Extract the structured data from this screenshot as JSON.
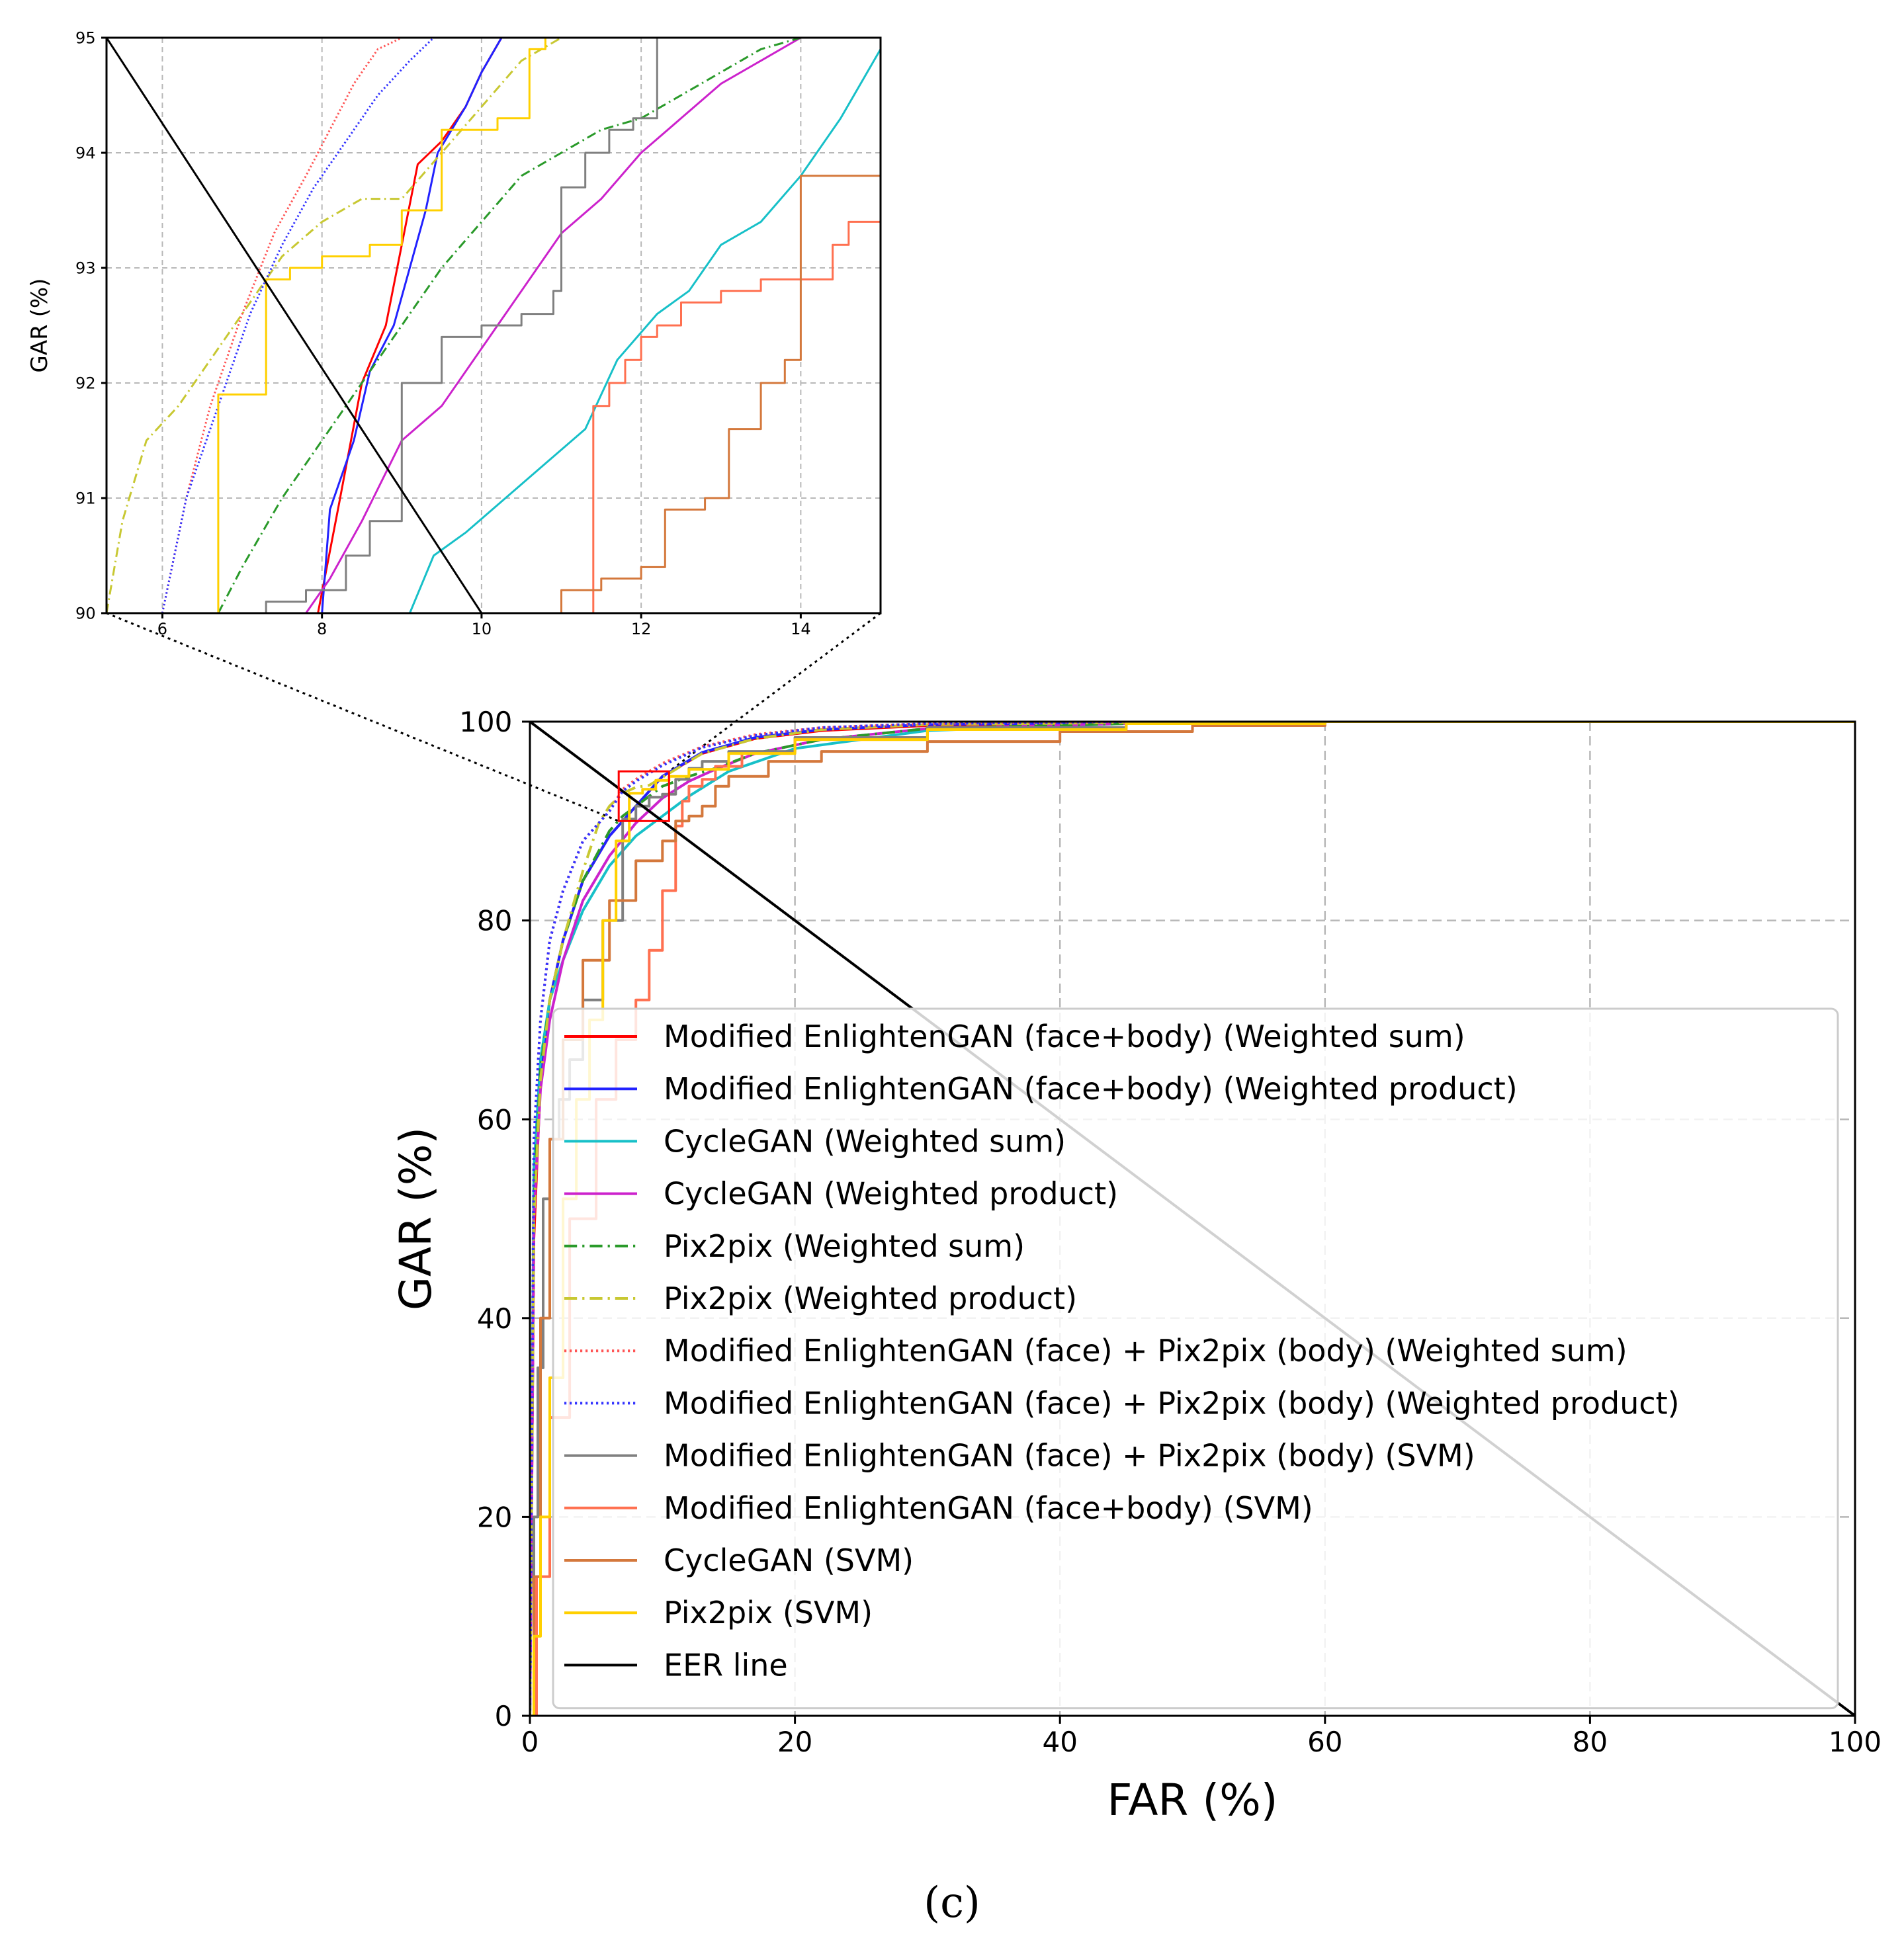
{
  "chart_data": [
    {
      "id": "main",
      "type": "line",
      "title": "",
      "xlabel": "FAR (%)",
      "ylabel": "GAR (%)",
      "xlim": [
        0,
        100
      ],
      "ylim": [
        0,
        100
      ],
      "xticks": [
        0,
        20,
        40,
        60,
        80,
        100
      ],
      "yticks": [
        0,
        20,
        40,
        60,
        80,
        100
      ],
      "grid": true,
      "legend_position": "lower-right",
      "zoom_box": {
        "x": [
          6.7,
          10.5
        ],
        "y": [
          90,
          95
        ]
      },
      "series": [
        {
          "name": "Modified EnlightenGAN (face+body) (Weighted sum)",
          "color": "#ff0000",
          "style": "solid",
          "x": [
            0,
            0.3,
            0.8,
            1.5,
            2.5,
            4,
            6,
            8,
            10,
            13,
            17,
            22,
            30,
            45,
            60,
            78,
            100
          ],
          "y": [
            0,
            48,
            64,
            72,
            78,
            84,
            88.5,
            91.5,
            94.5,
            96.8,
            98.3,
            99.1,
            99.6,
            99.9,
            100,
            100,
            100
          ]
        },
        {
          "name": "Modified EnlightenGAN (face+body) (Weighted product)",
          "color": "#2222ff",
          "style": "solid",
          "x": [
            0,
            0.3,
            0.8,
            1.5,
            2.5,
            4,
            6,
            8,
            10,
            13,
            17,
            22,
            30,
            45,
            60,
            100
          ],
          "y": [
            0,
            50,
            65,
            72,
            78,
            84,
            88.5,
            91.5,
            94.5,
            96.9,
            98.4,
            99.2,
            99.7,
            99.9,
            100,
            100
          ]
        },
        {
          "name": "CycleGAN (Weighted sum)",
          "color": "#17c0c8",
          "style": "solid",
          "x": [
            0,
            0.3,
            0.8,
            1.5,
            2.5,
            4,
            6,
            8,
            10,
            12,
            15,
            20,
            30,
            45,
            60,
            100
          ],
          "y": [
            0,
            55,
            66,
            72,
            76,
            81,
            85.5,
            88.5,
            90.5,
            92.5,
            95,
            97.3,
            99.1,
            99.8,
            100,
            100
          ]
        },
        {
          "name": "CycleGAN (Weighted product)",
          "color": "#cc22cc",
          "style": "solid",
          "x": [
            0,
            0.3,
            0.8,
            1.5,
            2.5,
            4,
            6,
            8,
            10,
            12,
            14,
            17,
            22,
            30,
            45,
            60,
            100
          ],
          "y": [
            0,
            50,
            63,
            70,
            76,
            82,
            86.5,
            89.8,
            92.3,
            94,
            95.2,
            96.8,
            98.2,
            99.3,
            99.8,
            100,
            100
          ]
        },
        {
          "name": "Pix2pix (Weighted sum)",
          "color": "#2a9a2a",
          "style": "dashdot",
          "x": [
            0,
            0.3,
            0.8,
            1.5,
            2.5,
            4,
            6,
            7,
            8,
            10,
            12,
            14,
            17,
            22,
            30,
            45,
            60,
            100
          ],
          "y": [
            0,
            52,
            65,
            72,
            78,
            84,
            89,
            90.5,
            91.5,
            93.5,
            94.5,
            95.3,
            96.8,
            98.2,
            99.3,
            99.8,
            100,
            100
          ]
        },
        {
          "name": "Pix2pix (Weighted product)",
          "color": "#c8c832",
          "style": "dashdot",
          "x": [
            0,
            0.3,
            0.8,
            1.5,
            2.5,
            4,
            5.2,
            6,
            7,
            8,
            9,
            10.5,
            13,
            17,
            22,
            30,
            45,
            60,
            100
          ],
          "y": [
            0,
            50,
            64,
            72,
            78,
            85,
            89.8,
            91.5,
            92.8,
            93.4,
            93.6,
            94.8,
            96.8,
            98.3,
            99.2,
            99.7,
            99.9,
            100,
            100
          ]
        },
        {
          "name": "Modified EnlightenGAN (face) + Pix2pix (body) (Weighted sum)",
          "color": "#ff5555",
          "style": "dotted",
          "x": [
            0,
            0.3,
            0.8,
            1.5,
            2.5,
            4,
            6,
            7,
            8,
            9,
            10,
            13,
            17,
            22,
            30,
            45,
            60,
            100
          ],
          "y": [
            0,
            58,
            70,
            78,
            83,
            88,
            91,
            93.2,
            94.2,
            95,
            95.8,
            97.5,
            98.7,
            99.4,
            99.8,
            100,
            100,
            100
          ]
        },
        {
          "name": "Modified EnlightenGAN (face) + Pix2pix (body) (Weighted product)",
          "color": "#3333ff",
          "style": "dotted",
          "x": [
            0,
            0.3,
            0.8,
            1.5,
            2.5,
            4,
            6,
            7,
            8,
            9,
            10,
            13,
            17,
            22,
            30,
            45,
            60,
            100
          ],
          "y": [
            0,
            58,
            70,
            78,
            83,
            88,
            91,
            93,
            94,
            94.8,
            95.6,
            97.4,
            98.6,
            99.4,
            99.8,
            100,
            100,
            100
          ]
        },
        {
          "name": "Modified EnlightenGAN (face) + Pix2pix (body) (SVM)",
          "color": "#808080",
          "style": "step",
          "x": [
            0,
            0.3,
            0.6,
            1.0,
            1.5,
            2.2,
            3.0,
            4.0,
            5.5,
            7,
            8,
            9,
            10,
            11,
            12,
            13,
            15,
            20,
            30,
            45,
            60,
            100
          ],
          "y": [
            0,
            20,
            35,
            52,
            58,
            62,
            66,
            72,
            80,
            90.2,
            91.5,
            92.4,
            92.7,
            94.2,
            95.3,
            96,
            97,
            98.4,
            99.4,
            99.9,
            100,
            100
          ]
        },
        {
          "name": "Modified EnlightenGAN (face+body) (SVM)",
          "color": "#ff7050",
          "style": "step",
          "x": [
            0,
            0.5,
            1.5,
            3,
            5,
            6.5,
            8,
            9,
            10,
            11,
            11.5,
            12,
            13,
            14,
            16,
            20,
            30,
            45,
            60,
            100
          ],
          "y": [
            0,
            14,
            30,
            50,
            62,
            68,
            72,
            77,
            83,
            89.5,
            92,
            93.5,
            94.2,
            95.5,
            96.8,
            98.2,
            99.2,
            99.8,
            100,
            100
          ]
        },
        {
          "name": "CycleGAN (SVM)",
          "color": "#d4783c",
          "style": "step",
          "x": [
            0,
            0.3,
            0.8,
            1.5,
            2.5,
            4,
            6,
            8,
            10,
            11,
            12,
            13,
            14,
            15,
            18,
            22,
            30,
            40,
            50,
            60,
            100
          ],
          "y": [
            0,
            14,
            40,
            58,
            68,
            76,
            82,
            86,
            88,
            90,
            90.5,
            91.5,
            93.5,
            94.5,
            96,
            97,
            98,
            99,
            99.6,
            100,
            100
          ]
        },
        {
          "name": "Pix2pix (SVM)",
          "color": "#ffd000",
          "style": "step",
          "x": [
            0,
            0.3,
            0.8,
            1.5,
            2.5,
            3.5,
            4.5,
            5.5,
            6.5,
            7.5,
            8.5,
            9.5,
            10.5,
            12,
            15,
            20,
            30,
            45,
            60,
            100
          ],
          "y": [
            0,
            8,
            20,
            34,
            52,
            62,
            70,
            80,
            88,
            92.8,
            93.2,
            94.1,
            94.5,
            95.2,
            96.8,
            98.2,
            99.2,
            99.8,
            100,
            100
          ]
        },
        {
          "name": "EER line",
          "color": "#000000",
          "style": "solid",
          "x": [
            0,
            100
          ],
          "y": [
            100,
            0
          ]
        }
      ]
    },
    {
      "id": "inset",
      "type": "line",
      "title": "",
      "xlabel": "",
      "ylabel": "GAR (%)",
      "xlim": [
        5.3,
        15
      ],
      "ylim": [
        90,
        95
      ],
      "xticks": [
        6,
        8,
        10,
        12,
        14
      ],
      "yticks": [
        90,
        91,
        92,
        93,
        94,
        95
      ],
      "grid": true,
      "series": [
        {
          "name": "Modified EnlightenGAN (face+body) (Weighted sum)",
          "color": "#ff0000",
          "style": "solid",
          "x": [
            7.95,
            8.2,
            8.5,
            8.8,
            9.0,
            9.2,
            9.5,
            9.8,
            10.0,
            10.25
          ],
          "y": [
            90,
            90.9,
            92.0,
            92.5,
            93.2,
            93.9,
            94.1,
            94.4,
            94.7,
            95
          ]
        },
        {
          "name": "Modified EnlightenGAN (face+body) (Weighted product)",
          "color": "#2222ff",
          "style": "solid",
          "x": [
            8.0,
            8.1,
            8.4,
            8.6,
            8.9,
            9.1,
            9.3,
            9.45,
            9.8,
            10.0,
            10.25
          ],
          "y": [
            90,
            90.9,
            91.5,
            92.1,
            92.5,
            93.0,
            93.5,
            94.0,
            94.4,
            94.7,
            95
          ]
        },
        {
          "name": "CycleGAN (Weighted sum)",
          "color": "#17c0c8",
          "style": "solid",
          "x": [
            9.1,
            9.4,
            9.8,
            10.3,
            10.8,
            11.3,
            11.7,
            12.2,
            12.6,
            13.0,
            13.5,
            14.0,
            14.5,
            15
          ],
          "y": [
            90,
            90.5,
            90.7,
            91.0,
            91.3,
            91.6,
            92.2,
            92.6,
            92.8,
            93.2,
            93.4,
            93.8,
            94.3,
            94.9
          ]
        },
        {
          "name": "CycleGAN (Weighted product)",
          "color": "#cc22cc",
          "style": "solid",
          "x": [
            7.8,
            8.1,
            8.5,
            9.0,
            9.5,
            10.0,
            10.5,
            11.0,
            11.5,
            12.0,
            12.5,
            13.0,
            13.5,
            14.0
          ],
          "y": [
            90,
            90.3,
            90.8,
            91.5,
            91.8,
            92.3,
            92.8,
            93.3,
            93.6,
            94.0,
            94.3,
            94.6,
            94.8,
            95
          ]
        },
        {
          "name": "Pix2pix (Weighted sum)",
          "color": "#2a9a2a",
          "style": "dashdot",
          "x": [
            6.7,
            7.0,
            7.5,
            8.0,
            8.5,
            9.0,
            9.5,
            10.0,
            10.5,
            11.0,
            11.5,
            12.0,
            12.5,
            13.0,
            13.5,
            14.0
          ],
          "y": [
            90,
            90.4,
            91.0,
            91.5,
            92.0,
            92.5,
            93.0,
            93.4,
            93.8,
            94.0,
            94.2,
            94.3,
            94.5,
            94.7,
            94.9,
            95
          ]
        },
        {
          "name": "Pix2pix (Weighted product)",
          "color": "#c8c832",
          "style": "dashdot",
          "x": [
            5.3,
            5.5,
            5.8,
            6.2,
            6.6,
            7.0,
            7.5,
            8.0,
            8.5,
            9.0,
            9.5,
            10.0,
            10.5,
            11.0
          ],
          "y": [
            90,
            90.8,
            91.5,
            91.8,
            92.2,
            92.6,
            93.1,
            93.4,
            93.6,
            93.6,
            94.0,
            94.4,
            94.8,
            95
          ]
        },
        {
          "name": "Modified EnlightenGAN (face) + Pix2pix (body) (Weighted sum)",
          "color": "#ff5555",
          "style": "dotted",
          "x": [
            6.0,
            6.3,
            6.6,
            7.0,
            7.4,
            7.8,
            8.1,
            8.4,
            8.7,
            9.0
          ],
          "y": [
            90,
            91.0,
            91.8,
            92.6,
            93.3,
            93.8,
            94.2,
            94.6,
            94.9,
            95
          ]
        },
        {
          "name": "Modified EnlightenGAN (face) + Pix2pix (body) (Weighted product)",
          "color": "#3333ff",
          "style": "dotted",
          "x": [
            6.0,
            6.3,
            6.7,
            7.1,
            7.5,
            7.9,
            8.3,
            8.7,
            9.1,
            9.4
          ],
          "y": [
            90,
            91.0,
            91.8,
            92.6,
            93.2,
            93.7,
            94.1,
            94.5,
            94.8,
            95
          ]
        },
        {
          "name": "Modified EnlightenGAN (face) + Pix2pix (body) (SVM)",
          "color": "#808080",
          "style": "step",
          "x": [
            7.0,
            7.3,
            7.8,
            8.3,
            8.6,
            9.0,
            9.5,
            10.0,
            10.5,
            10.9,
            11.0,
            11.3,
            11.6,
            11.9,
            12.2,
            12.2
          ],
          "y": [
            90,
            90.1,
            90.2,
            90.5,
            90.8,
            92.0,
            92.4,
            92.5,
            92.6,
            92.8,
            93.7,
            94.0,
            94.2,
            94.3,
            94.4,
            95
          ]
        },
        {
          "name": "Modified EnlightenGAN (face+body) (SVM)",
          "color": "#ff7050",
          "style": "step",
          "x": [
            11.4,
            11.4,
            11.6,
            11.8,
            12.0,
            12.2,
            12.5,
            13.0,
            13.5,
            14.0,
            14.4,
            14.6,
            15
          ],
          "y": [
            90,
            91.8,
            92.0,
            92.2,
            92.4,
            92.5,
            92.7,
            92.8,
            92.9,
            92.9,
            93.2,
            93.4,
            93.5
          ]
        },
        {
          "name": "CycleGAN (SVM)",
          "color": "#d4783c",
          "style": "step",
          "x": [
            10.6,
            11.0,
            11.5,
            12.0,
            12.3,
            12.8,
            13.1,
            13.5,
            13.8,
            14.0,
            14.5,
            15
          ],
          "y": [
            90,
            90.2,
            90.3,
            90.4,
            90.9,
            91.0,
            91.6,
            92.0,
            92.2,
            93.8,
            93.8,
            93.8
          ]
        },
        {
          "name": "Pix2pix (SVM)",
          "color": "#ffd000",
          "style": "step",
          "x": [
            6.7,
            6.7,
            7.3,
            7.3,
            7.6,
            8.0,
            8.6,
            9.0,
            9.5,
            9.5,
            10.2,
            10.6,
            10.8
          ],
          "y": [
            90,
            91.9,
            91.9,
            92.9,
            93.0,
            93.1,
            93.2,
            93.5,
            93.5,
            94.2,
            94.3,
            94.9,
            95
          ]
        },
        {
          "name": "EER line",
          "color": "#000000",
          "style": "solid",
          "x": [
            5.3,
            10.0
          ],
          "y": [
            95,
            90
          ]
        }
      ]
    }
  ],
  "caption": "(c)"
}
